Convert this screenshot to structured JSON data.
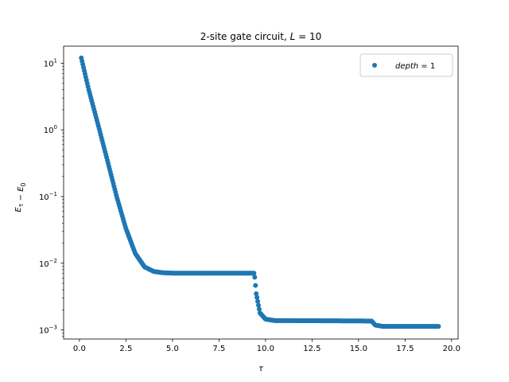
{
  "chart_data": {
    "type": "scatter",
    "title": "2-site gate circuit, L = 10",
    "xlabel": "τ",
    "ylabel": "E_τ − E_0",
    "x_range": [
      -0.85,
      20.35
    ],
    "y_range": [
      0.00073,
      18
    ],
    "y_scale": "log",
    "x_ticks": [
      0.0,
      2.5,
      5.0,
      7.5,
      10.0,
      12.5,
      15.0,
      17.5,
      20.0
    ],
    "x_tick_labels": [
      "0.0",
      "2.5",
      "5.0",
      "7.5",
      "10.0",
      "12.5",
      "15.0",
      "17.5",
      "20.0"
    ],
    "y_ticks": [
      0.001,
      0.01,
      0.1,
      1,
      10
    ],
    "y_tick_labels": [
      {
        "base": "10",
        "exp": "−3"
      },
      {
        "base": "10",
        "exp": "−2"
      },
      {
        "base": "10",
        "exp": "−1"
      },
      {
        "base": "10",
        "exp": "0"
      },
      {
        "base": "10",
        "exp": "1"
      }
    ],
    "legend": {
      "position": "top-right",
      "entries": [
        {
          "name": "depth = 1",
          "color": "#1f77b4"
        }
      ]
    },
    "grid": false,
    "series": [
      {
        "name": "depth = 1",
        "color": "#1f77b4",
        "marker": "circle",
        "x_start": 0.1,
        "x_end": 19.3,
        "x_step": 0.04,
        "points": [
          [
            0.1,
            12.0
          ],
          [
            0.5,
            4.0
          ],
          [
            1.0,
            1.2
          ],
          [
            1.5,
            0.35
          ],
          [
            2.0,
            0.1
          ],
          [
            2.5,
            0.033
          ],
          [
            3.0,
            0.014
          ],
          [
            3.5,
            0.0088
          ],
          [
            4.0,
            0.0075
          ],
          [
            4.5,
            0.0072
          ],
          [
            5.0,
            0.0071
          ],
          [
            9.4,
            0.0071
          ],
          [
            9.5,
            0.0035
          ],
          [
            9.7,
            0.0018
          ],
          [
            10.0,
            0.00145
          ],
          [
            10.5,
            0.00138
          ],
          [
            15.7,
            0.00136
          ],
          [
            15.9,
            0.00118
          ],
          [
            16.3,
            0.00113
          ],
          [
            19.3,
            0.00113
          ]
        ]
      }
    ]
  }
}
